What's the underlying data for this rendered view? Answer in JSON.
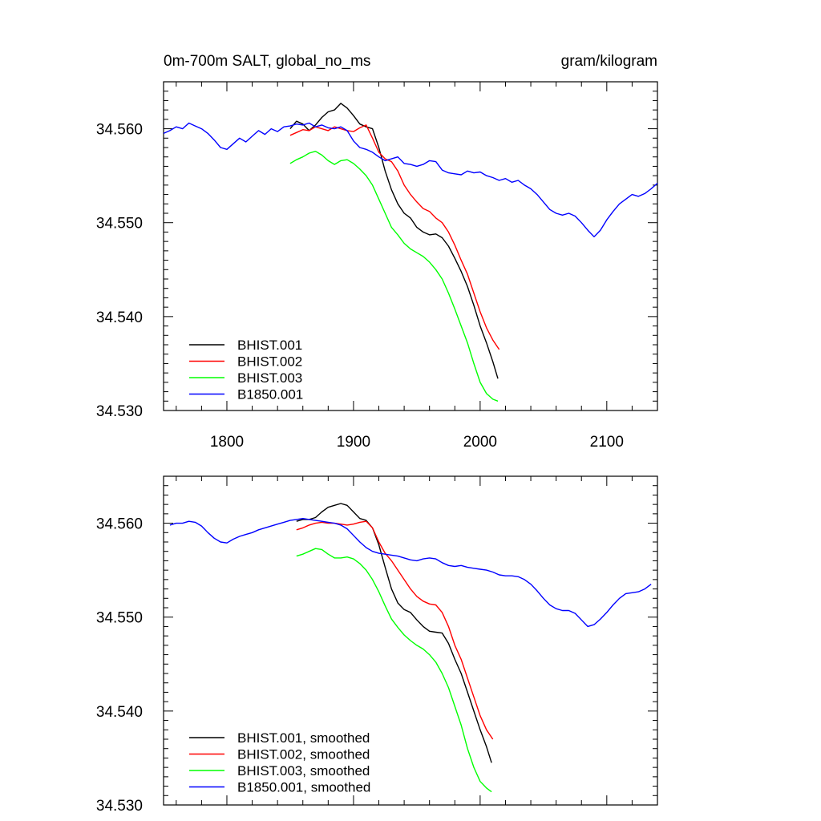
{
  "chart_data": [
    {
      "type": "line",
      "title_left": "0m-700m SALT, global_no_ms",
      "title_right": "gram/kilogram",
      "xlim": [
        1750,
        2140
      ],
      "ylim": [
        34.53,
        34.565
      ],
      "xticks": [
        1800,
        1900,
        2000,
        2100
      ],
      "yticks": [
        34.53,
        34.54,
        34.55,
        34.56
      ],
      "ytick_labels": [
        "34.530",
        "34.540",
        "34.550",
        "34.560"
      ],
      "xtick_labels": [
        "1800",
        "1900",
        "2000",
        "2100"
      ],
      "legend_position": "bottom-left",
      "series": [
        {
          "name": "BHIST.001",
          "color": "#000000",
          "x": [
            1850,
            1855,
            1860,
            1865,
            1870,
            1875,
            1880,
            1885,
            1890,
            1895,
            1900,
            1905,
            1910,
            1915,
            1920,
            1925,
            1930,
            1935,
            1940,
            1945,
            1950,
            1955,
            1960,
            1965,
            1970,
            1975,
            1980,
            1985,
            1990,
            1995,
            2000,
            2005,
            2010,
            2014
          ],
          "y": [
            34.56,
            34.5608,
            34.5605,
            34.5598,
            34.5604,
            34.5612,
            34.5618,
            34.562,
            34.5627,
            34.5622,
            34.5614,
            34.5605,
            34.5602,
            34.56,
            34.558,
            34.5555,
            34.5535,
            34.552,
            34.551,
            34.5505,
            34.5495,
            34.549,
            34.5487,
            34.5488,
            34.5484,
            34.5475,
            34.5462,
            34.5448,
            34.5432,
            34.5412,
            34.539,
            34.5372,
            34.5352,
            34.5334
          ]
        },
        {
          "name": "BHIST.002",
          "color": "#ff0000",
          "x": [
            1850,
            1855,
            1860,
            1865,
            1870,
            1875,
            1880,
            1885,
            1890,
            1895,
            1900,
            1905,
            1910,
            1915,
            1920,
            1925,
            1930,
            1935,
            1940,
            1945,
            1950,
            1955,
            1960,
            1965,
            1970,
            1975,
            1980,
            1985,
            1990,
            1995,
            2000,
            2005,
            2010,
            2015
          ],
          "y": [
            34.5593,
            34.5596,
            34.5599,
            34.5598,
            34.5602,
            34.56,
            34.5598,
            34.5602,
            34.56,
            34.5598,
            34.5597,
            34.5601,
            34.5604,
            34.559,
            34.5575,
            34.5568,
            34.5565,
            34.5555,
            34.554,
            34.553,
            34.5522,
            34.5515,
            34.5512,
            34.5505,
            34.55,
            34.549,
            34.5476,
            34.546,
            34.5445,
            34.5425,
            34.5405,
            34.5388,
            34.5375,
            34.5365
          ]
        },
        {
          "name": "BHIST.003",
          "color": "#00ff00",
          "x": [
            1850,
            1855,
            1860,
            1865,
            1870,
            1875,
            1880,
            1885,
            1890,
            1895,
            1900,
            1905,
            1910,
            1915,
            1920,
            1925,
            1930,
            1935,
            1940,
            1945,
            1950,
            1955,
            1960,
            1965,
            1970,
            1975,
            1980,
            1985,
            1990,
            1995,
            2000,
            2005,
            2010,
            2014
          ],
          "y": [
            34.5563,
            34.5567,
            34.557,
            34.5574,
            34.5576,
            34.5572,
            34.5566,
            34.5562,
            34.5566,
            34.5567,
            34.5563,
            34.5557,
            34.555,
            34.554,
            34.5525,
            34.551,
            34.5495,
            34.5487,
            34.5478,
            34.5472,
            34.5468,
            34.5464,
            34.5458,
            34.545,
            34.544,
            34.5425,
            34.5408,
            34.539,
            34.5372,
            34.535,
            34.533,
            34.5318,
            34.5312,
            34.531
          ]
        },
        {
          "name": "B1850.001",
          "color": "#0000ff",
          "x": [
            1750,
            1755,
            1760,
            1765,
            1770,
            1775,
            1780,
            1785,
            1790,
            1795,
            1800,
            1805,
            1810,
            1815,
            1820,
            1825,
            1830,
            1835,
            1840,
            1845,
            1850,
            1855,
            1860,
            1865,
            1870,
            1875,
            1880,
            1885,
            1890,
            1895,
            1900,
            1905,
            1910,
            1915,
            1920,
            1925,
            1930,
            1935,
            1940,
            1945,
            1950,
            1955,
            1960,
            1965,
            1970,
            1975,
            1980,
            1985,
            1990,
            1995,
            2000,
            2005,
            2010,
            2015,
            2020,
            2025,
            2030,
            2035,
            2040,
            2045,
            2050,
            2055,
            2060,
            2065,
            2070,
            2075,
            2080,
            2085,
            2090,
            2095,
            2100,
            2105,
            2110,
            2115,
            2120,
            2125,
            2130,
            2135,
            2140
          ],
          "y": [
            34.5595,
            34.5598,
            34.5602,
            34.56,
            34.5606,
            34.5603,
            34.56,
            34.5595,
            34.5588,
            34.558,
            34.5578,
            34.5584,
            34.559,
            34.5586,
            34.5592,
            34.5598,
            34.5594,
            34.56,
            34.5597,
            34.5602,
            34.5603,
            34.5605,
            34.5604,
            34.5606,
            34.5602,
            34.5604,
            34.5601,
            34.56,
            34.5602,
            34.5598,
            34.5587,
            34.558,
            34.5578,
            34.5575,
            34.557,
            34.5566,
            34.5568,
            34.557,
            34.5563,
            34.5562,
            34.556,
            34.5562,
            34.5566,
            34.5565,
            34.5556,
            34.5553,
            34.5552,
            34.5551,
            34.5555,
            34.5553,
            34.5554,
            34.555,
            34.5548,
            34.5545,
            34.5547,
            34.5543,
            34.5545,
            34.554,
            34.5536,
            34.553,
            34.5522,
            34.5514,
            34.551,
            34.5508,
            34.551,
            34.5507,
            34.55,
            34.5492,
            34.5485,
            34.5492,
            34.5503,
            34.5512,
            34.552,
            34.5525,
            34.553,
            34.5528,
            34.5531,
            34.5536,
            34.5542
          ]
        }
      ]
    },
    {
      "type": "line",
      "xlim": [
        1750,
        2140
      ],
      "ylim": [
        34.53,
        34.565
      ],
      "yticks": [
        34.53,
        34.54,
        34.55,
        34.56
      ],
      "ytick_labels": [
        "34.530",
        "34.540",
        "34.550",
        "34.560"
      ],
      "xticks": [
        1800,
        1900,
        2000,
        2100
      ],
      "legend_position": "bottom-left",
      "series": [
        {
          "name": "BHIST.001, smoothed",
          "color": "#000000",
          "x": [
            1855,
            1860,
            1865,
            1870,
            1875,
            1880,
            1885,
            1890,
            1895,
            1900,
            1905,
            1910,
            1915,
            1920,
            1925,
            1930,
            1935,
            1940,
            1945,
            1950,
            1955,
            1960,
            1965,
            1970,
            1975,
            1980,
            1985,
            1990,
            1995,
            2000,
            2005,
            2009
          ],
          "y": [
            34.5602,
            34.5604,
            34.5604,
            34.5606,
            34.5612,
            34.5617,
            34.5619,
            34.5621,
            34.5619,
            34.5612,
            34.5605,
            34.5603,
            34.5595,
            34.5577,
            34.5553,
            34.553,
            34.5515,
            34.5508,
            34.5505,
            34.5497,
            34.549,
            34.5485,
            34.5484,
            34.5483,
            34.5472,
            34.5455,
            34.544,
            34.542,
            34.54,
            34.538,
            34.5362,
            34.5345
          ]
        },
        {
          "name": "BHIST.002, smoothed",
          "color": "#ff0000",
          "x": [
            1855,
            1860,
            1865,
            1870,
            1875,
            1880,
            1885,
            1890,
            1895,
            1900,
            1905,
            1910,
            1915,
            1920,
            1925,
            1930,
            1935,
            1940,
            1945,
            1950,
            1955,
            1960,
            1965,
            1970,
            1975,
            1980,
            1985,
            1990,
            1995,
            2000,
            2005,
            2010
          ],
          "y": [
            34.5593,
            34.5595,
            34.5598,
            34.56,
            34.5601,
            34.56,
            34.56,
            34.5599,
            34.5598,
            34.5599,
            34.5601,
            34.5602,
            34.5595,
            34.558,
            34.5568,
            34.556,
            34.555,
            34.554,
            34.553,
            34.5522,
            34.5517,
            34.5514,
            34.5513,
            34.5505,
            34.549,
            34.547,
            34.5455,
            34.5435,
            34.5415,
            34.5395,
            34.538,
            34.537
          ]
        },
        {
          "name": "BHIST.003, smoothed",
          "color": "#00ff00",
          "x": [
            1855,
            1860,
            1865,
            1870,
            1875,
            1880,
            1885,
            1890,
            1895,
            1900,
            1905,
            1910,
            1915,
            1920,
            1925,
            1930,
            1935,
            1940,
            1945,
            1950,
            1955,
            1960,
            1965,
            1970,
            1975,
            1980,
            1985,
            1990,
            1995,
            2000,
            2005,
            2009
          ],
          "y": [
            34.5565,
            34.5567,
            34.557,
            34.5573,
            34.5572,
            34.5567,
            34.5563,
            34.5563,
            34.5564,
            34.5562,
            34.5557,
            34.555,
            34.554,
            34.5527,
            34.5512,
            34.5498,
            34.5489,
            34.5481,
            34.5475,
            34.547,
            34.5466,
            34.546,
            34.5452,
            34.544,
            34.5425,
            34.5405,
            34.5385,
            34.536,
            34.534,
            34.5325,
            34.5318,
            34.5314
          ]
        },
        {
          "name": "B1850.001, smoothed",
          "color": "#0000ff",
          "x": [
            1755,
            1760,
            1765,
            1770,
            1775,
            1780,
            1785,
            1790,
            1795,
            1800,
            1805,
            1810,
            1815,
            1820,
            1825,
            1830,
            1835,
            1840,
            1845,
            1850,
            1855,
            1860,
            1865,
            1870,
            1875,
            1880,
            1885,
            1890,
            1895,
            1900,
            1905,
            1910,
            1915,
            1920,
            1925,
            1930,
            1935,
            1940,
            1945,
            1950,
            1955,
            1960,
            1965,
            1970,
            1975,
            1980,
            1985,
            1990,
            1995,
            2000,
            2005,
            2010,
            2015,
            2020,
            2025,
            2030,
            2035,
            2040,
            2045,
            2050,
            2055,
            2060,
            2065,
            2070,
            2075,
            2080,
            2085,
            2090,
            2095,
            2100,
            2105,
            2110,
            2115,
            2120,
            2125,
            2130,
            2135
          ],
          "y": [
            34.5598,
            34.56,
            34.56,
            34.5602,
            34.5601,
            34.5597,
            34.559,
            34.5584,
            34.558,
            34.5579,
            34.5583,
            34.5586,
            34.5588,
            34.559,
            34.5593,
            34.5595,
            34.5597,
            34.5599,
            34.5601,
            34.5603,
            34.5604,
            34.5605,
            34.5604,
            34.5603,
            34.5602,
            34.5601,
            34.56,
            34.5598,
            34.5594,
            34.5587,
            34.558,
            34.5574,
            34.557,
            34.5568,
            34.5567,
            34.5566,
            34.5565,
            34.5563,
            34.5561,
            34.556,
            34.5562,
            34.5563,
            34.5562,
            34.5558,
            34.5555,
            34.5554,
            34.5555,
            34.5553,
            34.5552,
            34.5551,
            34.555,
            34.5548,
            34.5545,
            34.5544,
            34.5544,
            34.5543,
            34.554,
            34.5535,
            34.5528,
            34.552,
            34.5513,
            34.5509,
            34.5507,
            34.5507,
            34.5504,
            34.5497,
            34.549,
            34.5492,
            34.5498,
            34.5505,
            34.5513,
            34.552,
            34.5525,
            34.5526,
            34.5527,
            34.553,
            34.5535
          ]
        }
      ]
    }
  ]
}
